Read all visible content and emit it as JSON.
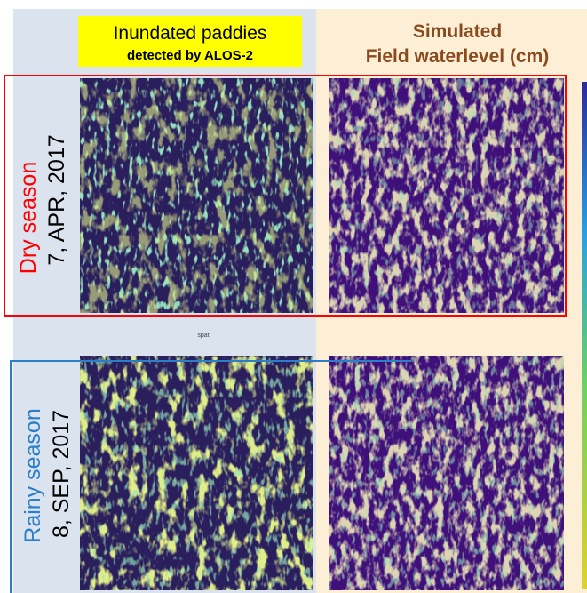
{
  "header": {
    "left_title": "Inundated paddies",
    "left_subtitle": "detected by ALOS-2",
    "right_title": "Simulated",
    "right_subtitle": "Field waterlevel (cm)"
  },
  "rows": [
    {
      "season": "Dry season",
      "date": "7, APR, 2017"
    },
    {
      "season": "Rainy season",
      "date": "8, SEP, 2017"
    }
  ],
  "panel_label": "spat"
}
